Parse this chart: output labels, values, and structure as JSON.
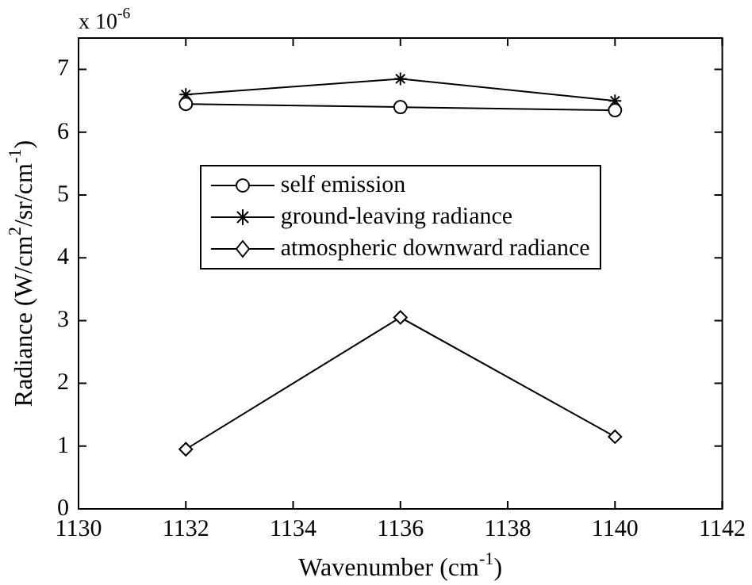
{
  "chart_data": {
    "type": "line",
    "xlabel": "Wavenumber (cm$^{-1}$)",
    "ylabel": "Radiance (W/cm$^{2}$/sr/cm$^{-1}$)",
    "annotations": [
      "x 10$^{-6}$"
    ],
    "x": [
      1132,
      1136,
      1140
    ],
    "xlim": [
      1130,
      1142
    ],
    "xticks": [
      1130,
      1132,
      1134,
      1136,
      1138,
      1140,
      1142
    ],
    "ylim": [
      0,
      7.5
    ],
    "yticks": [
      0,
      1,
      2,
      3,
      4,
      5,
      6,
      7
    ],
    "grid": false,
    "legend": "top",
    "line_style": "solid",
    "series": [
      {
        "name": "self emission",
        "color": "#000000",
        "marker": "circle",
        "values": [
          6.45,
          6.4,
          6.35
        ]
      },
      {
        "name": "ground-leaving radiance",
        "color": "#000000",
        "marker": "cross",
        "values": [
          6.6,
          6.85,
          6.5
        ]
      },
      {
        "name": "atmospheric downward radiance",
        "color": "#000000",
        "marker": "diamond",
        "values": [
          0.95,
          3.05,
          1.15
        ]
      }
    ]
  }
}
